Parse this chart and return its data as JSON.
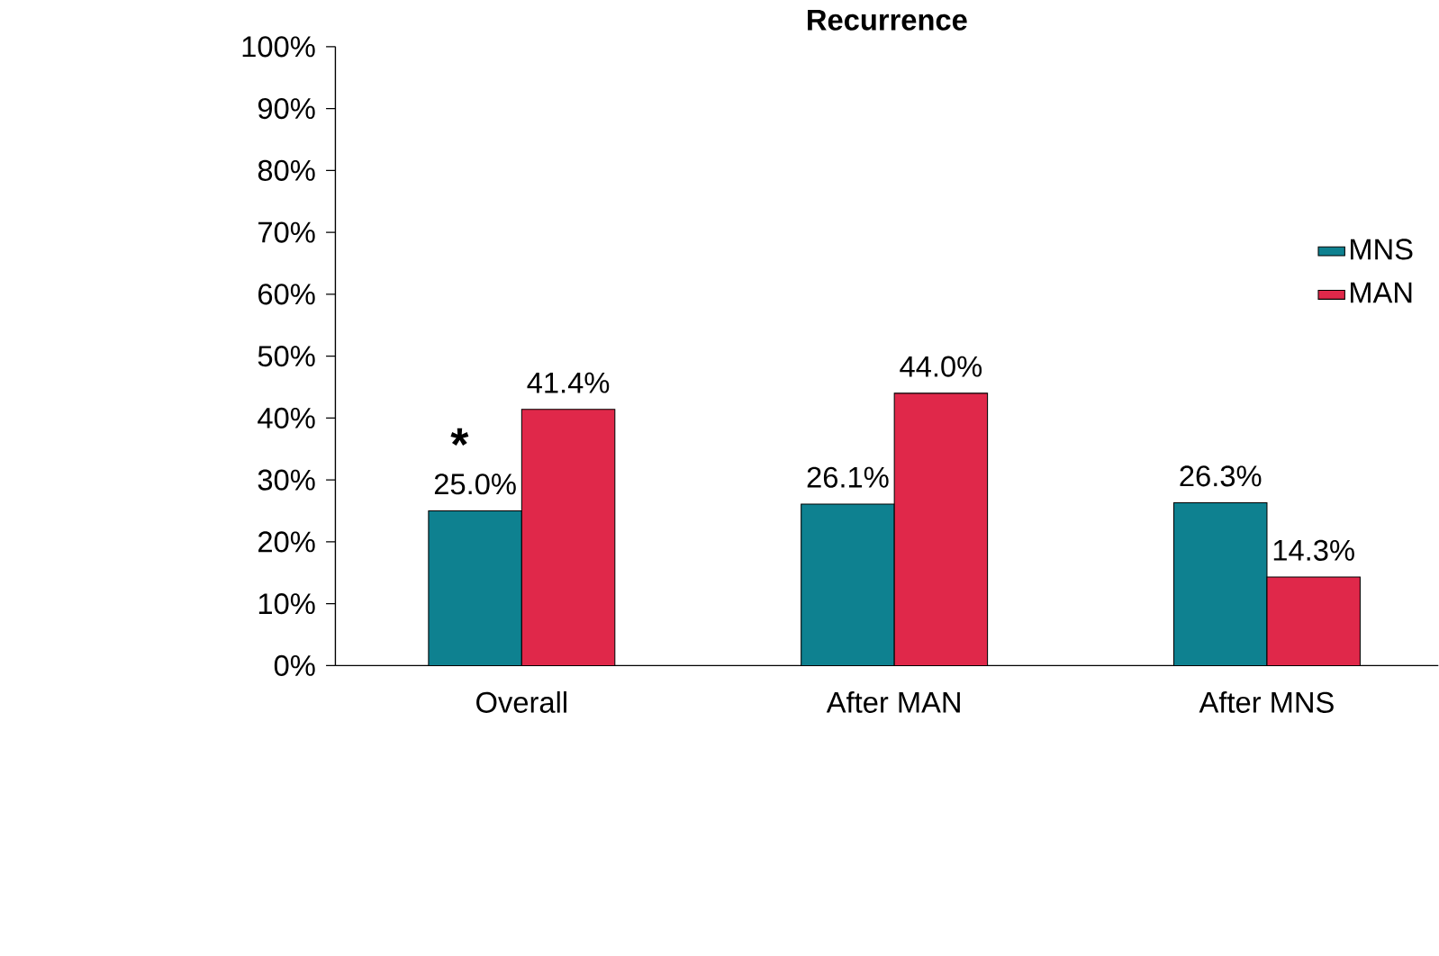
{
  "chart_data": {
    "type": "bar",
    "title": "Recurrence",
    "categories": [
      "Overall",
      "After MAN",
      "After MNS"
    ],
    "series": [
      {
        "name": "MNS",
        "color": "#0e8190",
        "values": [
          25.0,
          26.1,
          26.3
        ],
        "value_labels": [
          "25.0%",
          "26.1%",
          "26.3%"
        ]
      },
      {
        "name": "MAN",
        "color": "#e0284a",
        "values": [
          41.4,
          44.0,
          14.3
        ],
        "value_labels": [
          "41.4%",
          "44.0%",
          "14.3%"
        ]
      }
    ],
    "ylim": [
      0,
      100
    ],
    "yticks": [
      {
        "value": 0,
        "label": "0%"
      },
      {
        "value": 10,
        "label": "10%"
      },
      {
        "value": 20,
        "label": "20%"
      },
      {
        "value": 30,
        "label": "30%"
      },
      {
        "value": 40,
        "label": "40%"
      },
      {
        "value": 50,
        "label": "50%"
      },
      {
        "value": 60,
        "label": "60%"
      },
      {
        "value": 70,
        "label": "70%"
      },
      {
        "value": 80,
        "label": "80%"
      },
      {
        "value": 90,
        "label": "90%"
      },
      {
        "value": 100,
        "label": "100%"
      }
    ],
    "annotations": [
      "*"
    ],
    "legend": "right",
    "grid": false
  }
}
